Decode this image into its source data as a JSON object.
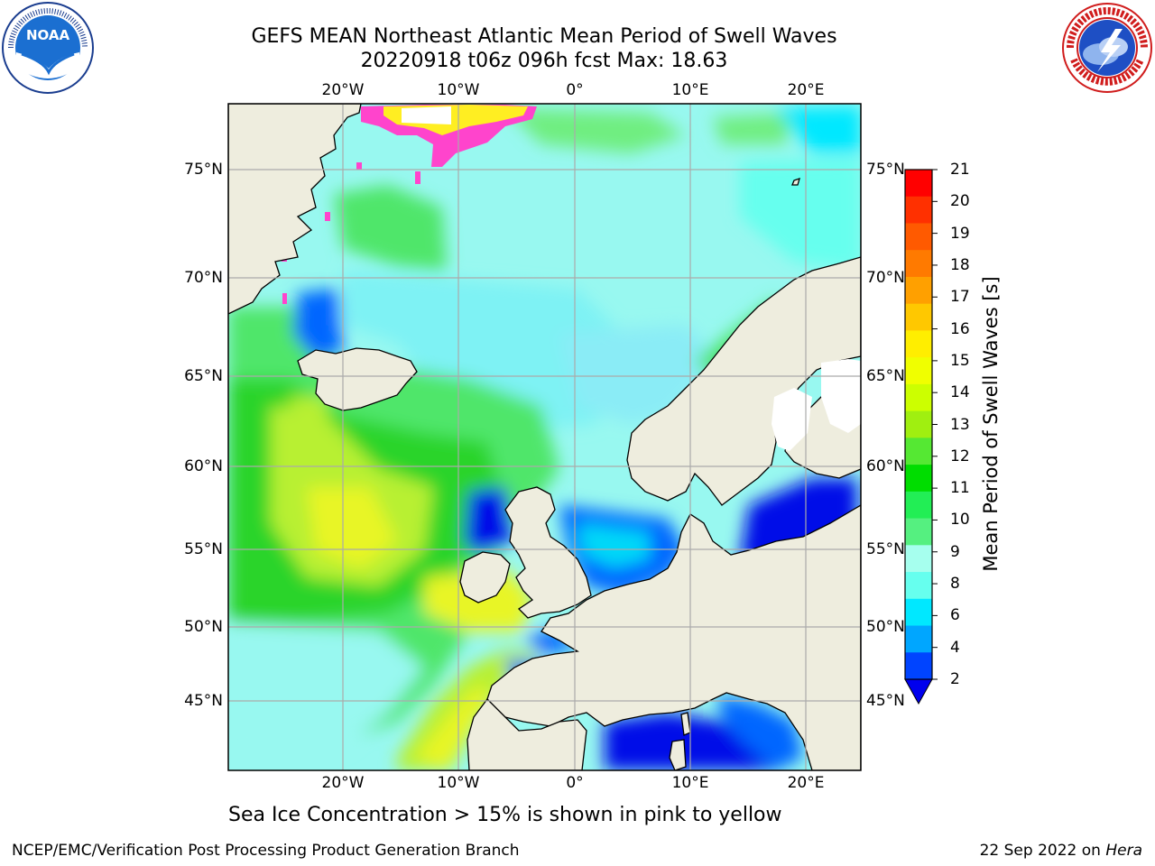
{
  "title": {
    "line1": "GEFS MEAN Northeast Atlantic Mean Period of Swell Waves",
    "line2": "20220918 t06z 096h fcst   Max: 18.63"
  },
  "logos": {
    "left": "NOAA",
    "right": "NATIONAL WEATHER SERVICE"
  },
  "axes": {
    "longitudes": [
      "20°W",
      "10°W",
      "0°",
      "10°E",
      "20°E"
    ],
    "latitudes": [
      "75°N",
      "70°N",
      "65°N",
      "60°N",
      "55°N",
      "50°N",
      "45°N"
    ]
  },
  "colorbar": {
    "label": "Mean Period of Swell Waves [s]",
    "ticks": [
      "21",
      "20",
      "19",
      "18",
      "17",
      "16",
      "15",
      "14",
      "13",
      "12",
      "11",
      "10",
      "9",
      "8",
      "6",
      "4",
      "2"
    ],
    "colors": [
      "#ff0000",
      "#ff3000",
      "#ff5a00",
      "#ff7a00",
      "#ffa000",
      "#ffc800",
      "#ffee00",
      "#f0ff00",
      "#ccff00",
      "#a0ef10",
      "#55e833",
      "#00dd00",
      "#22ee55",
      "#55f080",
      "#a6ffee",
      "#66ffee",
      "#00e8ff",
      "#00a6ff",
      "#0044ff"
    ],
    "extend_color": "#0000ee"
  },
  "note": "Sea Ice Concentration > 15% is shown in pink to yellow",
  "footer": {
    "left": "NCEP/EMC/Verification Post Processing Product Generation Branch",
    "date": "22 Sep 2022 on ",
    "machine": "Hera"
  },
  "map_colors": {
    "land": "#eeedde",
    "ocean_base": "#98f8f0",
    "mid_ocean": "#7ef2f4",
    "green": "#50e66a",
    "bright_green": "#2ad42a",
    "yellow_green": "#b8f030",
    "yellow": "#e8f528",
    "cyan": "#00d8f8",
    "blue": "#0066ff",
    "deep_blue": "#0010e8",
    "ice_pink": "#ff44cc",
    "ice_yellow": "#ffee22",
    "lake_white": "#ffffff",
    "grid": "#aaaaaa"
  }
}
